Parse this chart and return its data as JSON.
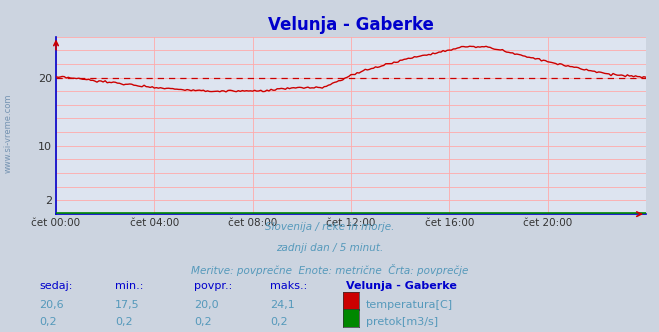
{
  "title": "Velunja - Gaberke",
  "title_color": "#0000cc",
  "bg_color": "#ccd4e0",
  "plot_bg_color": "#dde4f0",
  "grid_color": "#ffaaaa",
  "avg_line_color": "#cc0000",
  "avg_value": 20.0,
  "xlim": [
    0,
    288
  ],
  "ylim": [
    0,
    26
  ],
  "xtick_positions": [
    0,
    48,
    96,
    144,
    192,
    240
  ],
  "xtick_labels": [
    "čet 00:00",
    "čet 04:00",
    "čet 08:00",
    "čet 12:00",
    "čet 16:00",
    "čet 20:00"
  ],
  "ytick_vals": [
    2,
    10,
    20
  ],
  "watermark": "www.si-vreme.com",
  "footer_lines": [
    "Slovenija / reke in morje.",
    "zadnji dan / 5 minut.",
    "Meritve: povprečne  Enote: metrične  Črta: povprečje"
  ],
  "table_headers": [
    "sedaj:",
    "min.:",
    "povpr.:",
    "maks.:",
    "Velunja - Gaberke"
  ],
  "table_row1": [
    "20,6",
    "17,5",
    "20,0",
    "24,1",
    "temperatura[C]"
  ],
  "table_row2": [
    "0,2",
    "0,2",
    "0,2",
    "0,2",
    "pretok[m3/s]"
  ],
  "temp_color": "#cc0000",
  "flow_color": "#008800",
  "axis_color": "#0000cc",
  "tick_color": "#333333",
  "footer_color": "#5599bb",
  "table_header_color": "#0000cc",
  "table_val_color": "#5599bb",
  "arrow_color": "#cc0000",
  "watermark_color": "#6688aa"
}
